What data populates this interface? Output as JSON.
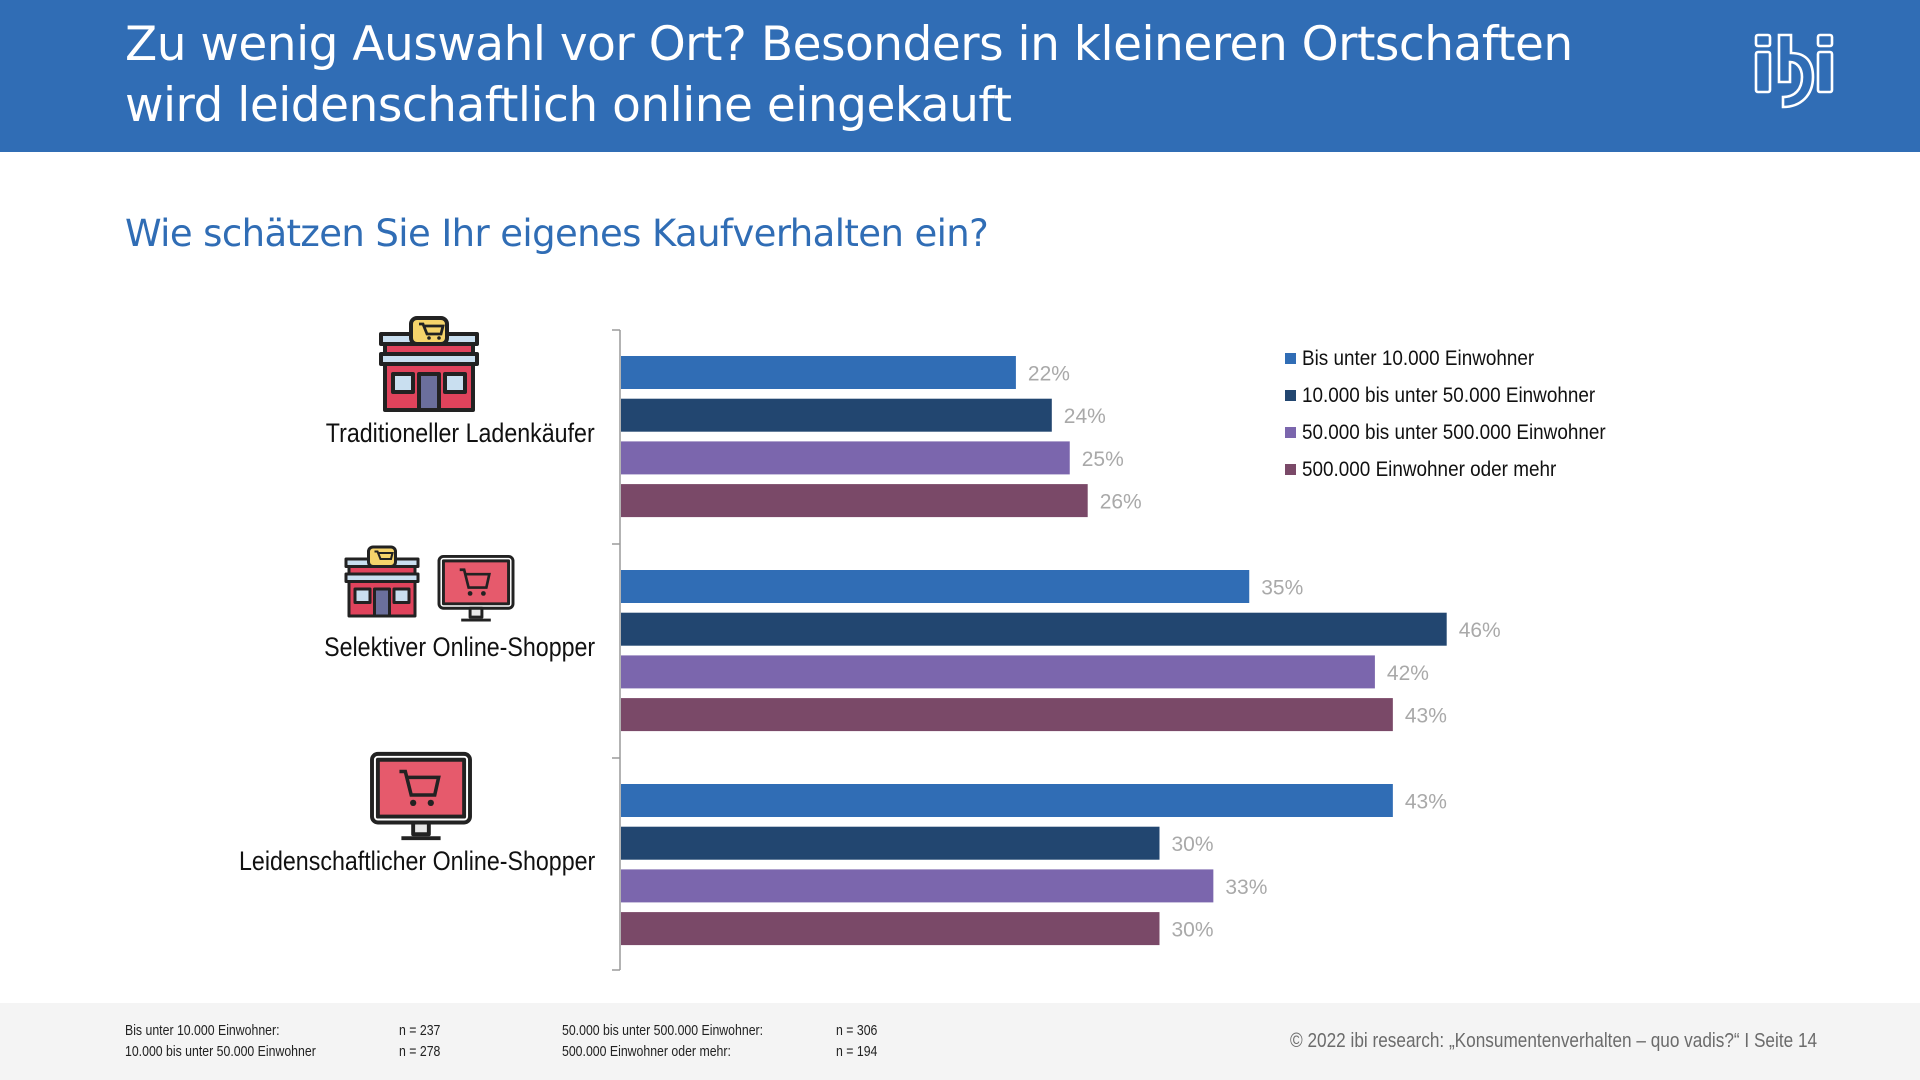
{
  "header": {
    "title_line1": "Zu wenig Auswahl vor Ort? Besonders in kleineren Ortschaften",
    "title_line2": "wird leidenschaftlich online eingekauft",
    "logo_text": "ibi"
  },
  "subtitle": "Wie schätzen Sie Ihr eigenes Kaufverhalten ein?",
  "colors": {
    "header_bg": "#306db5",
    "series": [
      "#306db5",
      "#224670",
      "#7b66ad",
      "#7a4968"
    ],
    "value_label": "#a9a9a9"
  },
  "chart_data": {
    "type": "bar",
    "orientation": "horizontal",
    "title": "Wie schätzen Sie Ihr eigenes Kaufverhalten ein?",
    "xlabel": "",
    "ylabel": "",
    "xlim": [
      0,
      50
    ],
    "unit": "%",
    "grid": false,
    "legend_position": "top-right",
    "categories": [
      "Traditioneller Ladenkäufer",
      "Selektiver Online-Shopper",
      "Leidenschaftlicher Online-Shopper"
    ],
    "category_icons": [
      [
        "store-icon"
      ],
      [
        "store-icon",
        "monitor-cart-icon"
      ],
      [
        "monitor-cart-icon"
      ]
    ],
    "series": [
      {
        "name": "Bis unter 10.000 Einwohner",
        "values": [
          22,
          35,
          43
        ]
      },
      {
        "name": "10.000 bis unter 50.000 Einwohner",
        "values": [
          24,
          46,
          30
        ]
      },
      {
        "name": "50.000 bis unter 500.000 Einwohner",
        "values": [
          25,
          42,
          33
        ]
      },
      {
        "name": "500.000 Einwohner oder mehr",
        "values": [
          26,
          43,
          30
        ]
      }
    ]
  },
  "footer": {
    "samples": [
      {
        "label": "Bis unter 10.000 Einwohner:",
        "n": "n = 237"
      },
      {
        "label": "10.000 bis unter 50.000 Einwohner",
        "n": "n = 278"
      },
      {
        "label": "50.000 bis unter 500.000 Einwohner:",
        "n": "n = 306"
      },
      {
        "label": "500.000 Einwohner oder mehr:",
        "n": "n = 194"
      }
    ],
    "copyright": "© 2022 ibi research: „Konsumentenverhalten – quo vadis?“   I Seite 14"
  }
}
